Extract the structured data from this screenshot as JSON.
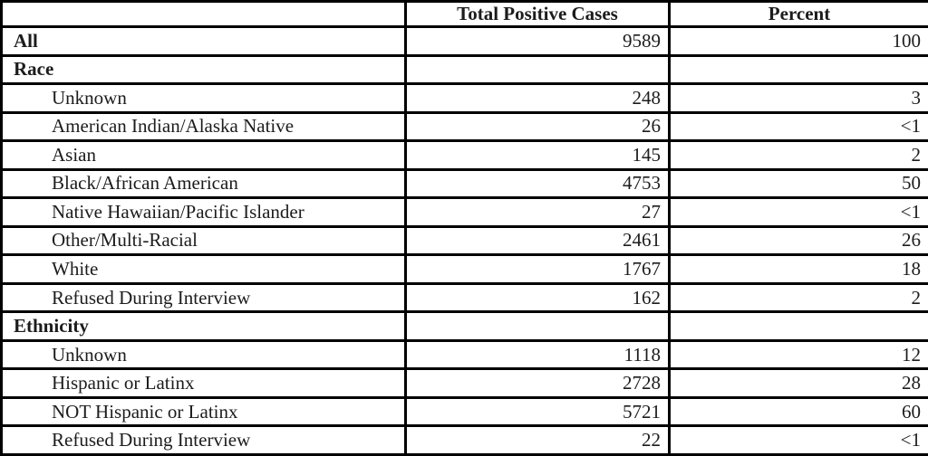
{
  "colors": {
    "border": "#000000",
    "text": "#1c1c1c",
    "background": "#ffffff"
  },
  "chart_data": {
    "type": "table",
    "title": "",
    "columns": [
      "",
      "Total Positive Cases",
      "Percent"
    ],
    "rows": [
      {
        "label": "All",
        "bold": true,
        "indent": false,
        "total": "9589",
        "percent": "100"
      },
      {
        "label": "Race",
        "bold": true,
        "indent": false,
        "total": "",
        "percent": ""
      },
      {
        "label": "Unknown",
        "bold": false,
        "indent": true,
        "total": "248",
        "percent": "3"
      },
      {
        "label": "American Indian/Alaska Native",
        "bold": false,
        "indent": true,
        "total": "26",
        "percent": "<1"
      },
      {
        "label": "Asian",
        "bold": false,
        "indent": true,
        "total": "145",
        "percent": "2"
      },
      {
        "label": "Black/African American",
        "bold": false,
        "indent": true,
        "total": "4753",
        "percent": "50"
      },
      {
        "label": "Native Hawaiian/Pacific Islander",
        "bold": false,
        "indent": true,
        "total": "27",
        "percent": "<1"
      },
      {
        "label": "Other/Multi-Racial",
        "bold": false,
        "indent": true,
        "total": "2461",
        "percent": "26"
      },
      {
        "label": "White",
        "bold": false,
        "indent": true,
        "total": "1767",
        "percent": "18"
      },
      {
        "label": "Refused During Interview",
        "bold": false,
        "indent": true,
        "total": "162",
        "percent": "2"
      },
      {
        "label": "Ethnicity",
        "bold": true,
        "indent": false,
        "total": "",
        "percent": ""
      },
      {
        "label": "Unknown",
        "bold": false,
        "indent": true,
        "total": "1118",
        "percent": "12"
      },
      {
        "label": "Hispanic or Latinx",
        "bold": false,
        "indent": true,
        "total": "2728",
        "percent": "28"
      },
      {
        "label": "NOT Hispanic or Latinx",
        "bold": false,
        "indent": true,
        "total": "5721",
        "percent": "60"
      },
      {
        "label": "Refused During Interview",
        "bold": false,
        "indent": true,
        "total": "22",
        "percent": "<1"
      }
    ]
  }
}
